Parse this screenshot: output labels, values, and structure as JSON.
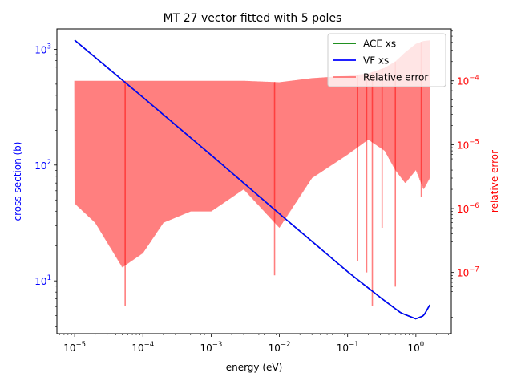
{
  "chart_data": {
    "type": "line",
    "title": "MT 27 vector fitted with 5 poles",
    "xlabel": "energy (eV)",
    "ylabel_left": "cross section (b)",
    "ylabel_right": "relative error",
    "x_scale": "log",
    "y_left_scale": "log",
    "y_right_scale": "log",
    "xlim": [
      5.5e-06,
      3.3
    ],
    "ylim_left": [
      3.5,
      1500
    ],
    "ylim_right": [
      1.1e-08,
      0.00065
    ],
    "grid": false,
    "legend_position": "top-right",
    "x_ticks": [
      {
        "value": 1e-05,
        "base": "10",
        "exp": "−5"
      },
      {
        "value": 0.0001,
        "base": "10",
        "exp": "−4"
      },
      {
        "value": 0.001,
        "base": "10",
        "exp": "−3"
      },
      {
        "value": 0.01,
        "base": "10",
        "exp": "−2"
      },
      {
        "value": 0.1,
        "base": "10",
        "exp": "−1"
      },
      {
        "value": 1,
        "base": "10",
        "exp": "0"
      }
    ],
    "y_left_ticks": [
      {
        "value": 10,
        "base": "10",
        "exp": "1"
      },
      {
        "value": 100,
        "base": "10",
        "exp": "2"
      },
      {
        "value": 1000,
        "base": "10",
        "exp": "3"
      }
    ],
    "y_right_ticks": [
      {
        "value": 1e-07,
        "base": "10",
        "exp": "−7"
      },
      {
        "value": 1e-06,
        "base": "10",
        "exp": "−6"
      },
      {
        "value": 1e-05,
        "base": "10",
        "exp": "−5"
      },
      {
        "value": 0.0001,
        "base": "10",
        "exp": "−4"
      }
    ],
    "series": [
      {
        "name": "ACE xs",
        "axis": "left",
        "color": "#008000",
        "x": [
          1e-05,
          0.0001,
          0.001,
          0.01,
          0.1,
          0.3,
          0.6,
          1.0,
          1.3,
          1.6
        ],
        "y": [
          1200,
          385,
          122,
          38,
          12,
          7.2,
          5.3,
          4.7,
          5.0,
          6.2
        ]
      },
      {
        "name": "VF xs",
        "axis": "left",
        "color": "#0000ff",
        "x": [
          1e-05,
          0.0001,
          0.001,
          0.01,
          0.1,
          0.3,
          0.6,
          1.0,
          1.3,
          1.6
        ],
        "y": [
          1200,
          385,
          122,
          38,
          12,
          7.2,
          5.3,
          4.7,
          5.0,
          6.2
        ]
      },
      {
        "name": "Relative error",
        "axis": "right",
        "color": "#ff0000",
        "alpha": 0.5,
        "envelope_x": [
          1e-05,
          2e-05,
          5e-05,
          0.0001,
          0.0002,
          0.0005,
          0.001,
          0.003,
          0.01,
          0.03,
          0.1,
          0.2,
          0.35,
          0.5,
          0.7,
          1.0,
          1.3,
          1.6
        ],
        "envelope_upper": [
          0.0001,
          0.0001,
          0.0001,
          0.0001,
          0.0001,
          0.0001,
          0.0001,
          0.0001,
          9.5e-05,
          0.00011,
          0.00012,
          0.00013,
          0.00016,
          0.0002,
          0.00028,
          0.00038,
          0.00042,
          0.00043
        ],
        "envelope_lower": [
          1.2e-06,
          6e-07,
          1.2e-07,
          2e-07,
          6e-07,
          9e-07,
          9e-07,
          2e-06,
          5e-07,
          3e-06,
          7e-06,
          1.2e-05,
          8e-06,
          4e-06,
          2.5e-06,
          4e-06,
          2e-06,
          3e-06
        ],
        "dips": [
          {
            "x": 5.5e-05,
            "y": 3e-08
          },
          {
            "x": 0.0085,
            "y": 9e-08
          },
          {
            "x": 0.14,
            "y": 1.5e-07
          },
          {
            "x": 0.19,
            "y": 1e-07
          },
          {
            "x": 0.23,
            "y": 3e-08
          },
          {
            "x": 0.32,
            "y": 5e-07
          },
          {
            "x": 0.5,
            "y": 6e-08
          },
          {
            "x": 1.2,
            "y": 1.5e-06
          }
        ]
      }
    ]
  }
}
